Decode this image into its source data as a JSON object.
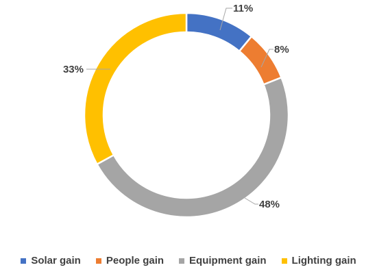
{
  "chart_data": {
    "type": "pie",
    "variant": "donut",
    "categories": [
      "Solar gain",
      "People gain",
      "Equipment gain",
      "Lighting gain"
    ],
    "values": [
      11,
      8,
      48,
      33
    ],
    "value_labels": [
      "11%",
      "8%",
      "48%",
      "33%"
    ],
    "colors": [
      "#4472c4",
      "#ed7d31",
      "#a5a5a5",
      "#ffc000"
    ],
    "legend_position": "bottom",
    "title": ""
  }
}
